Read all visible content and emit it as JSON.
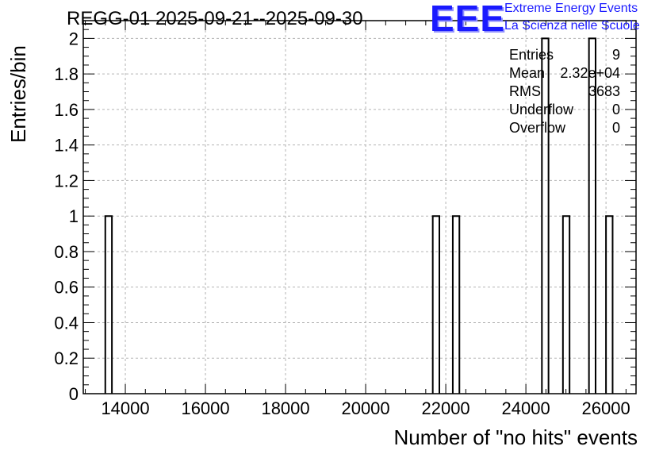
{
  "chart_data": {
    "type": "bar",
    "title": "REGG-01 2025-09-21--2025-09-30",
    "xlabel": "Number of \"no hits\" events",
    "ylabel": "Entries/bin",
    "xlim": [
      12950,
      26750
    ],
    "ylim": [
      0,
      2.1
    ],
    "bin_width": 165,
    "x_ticks": [
      "14000",
      "16000",
      "18000",
      "20000",
      "22000",
      "24000",
      "26000"
    ],
    "y_ticks": [
      "0",
      "0.2",
      "0.4",
      "0.6",
      "0.8",
      "1",
      "1.2",
      "1.4",
      "1.6",
      "1.8",
      "2"
    ],
    "grid": true,
    "bins": [
      {
        "x_low": 13500,
        "value": 1
      },
      {
        "x_low": 21675,
        "value": 1
      },
      {
        "x_low": 22175,
        "value": 1
      },
      {
        "x_low": 24400,
        "value": 2
      },
      {
        "x_low": 24925,
        "value": 1
      },
      {
        "x_low": 25575,
        "value": 2
      },
      {
        "x_low": 26000,
        "value": 1
      }
    ],
    "stats": [
      {
        "key": "Entries",
        "value": "9"
      },
      {
        "key": "Mean",
        "value": "2.32e+04"
      },
      {
        "key": "RMS",
        "value": "3683"
      },
      {
        "key": "Underflow",
        "value": "0"
      },
      {
        "key": "Overflow",
        "value": "0"
      }
    ]
  },
  "logo": {
    "mark": "EEE",
    "line1": "Extreme Energy Events",
    "line2": "La Scienza nelle Scuole",
    "color": "#1a1aff"
  }
}
